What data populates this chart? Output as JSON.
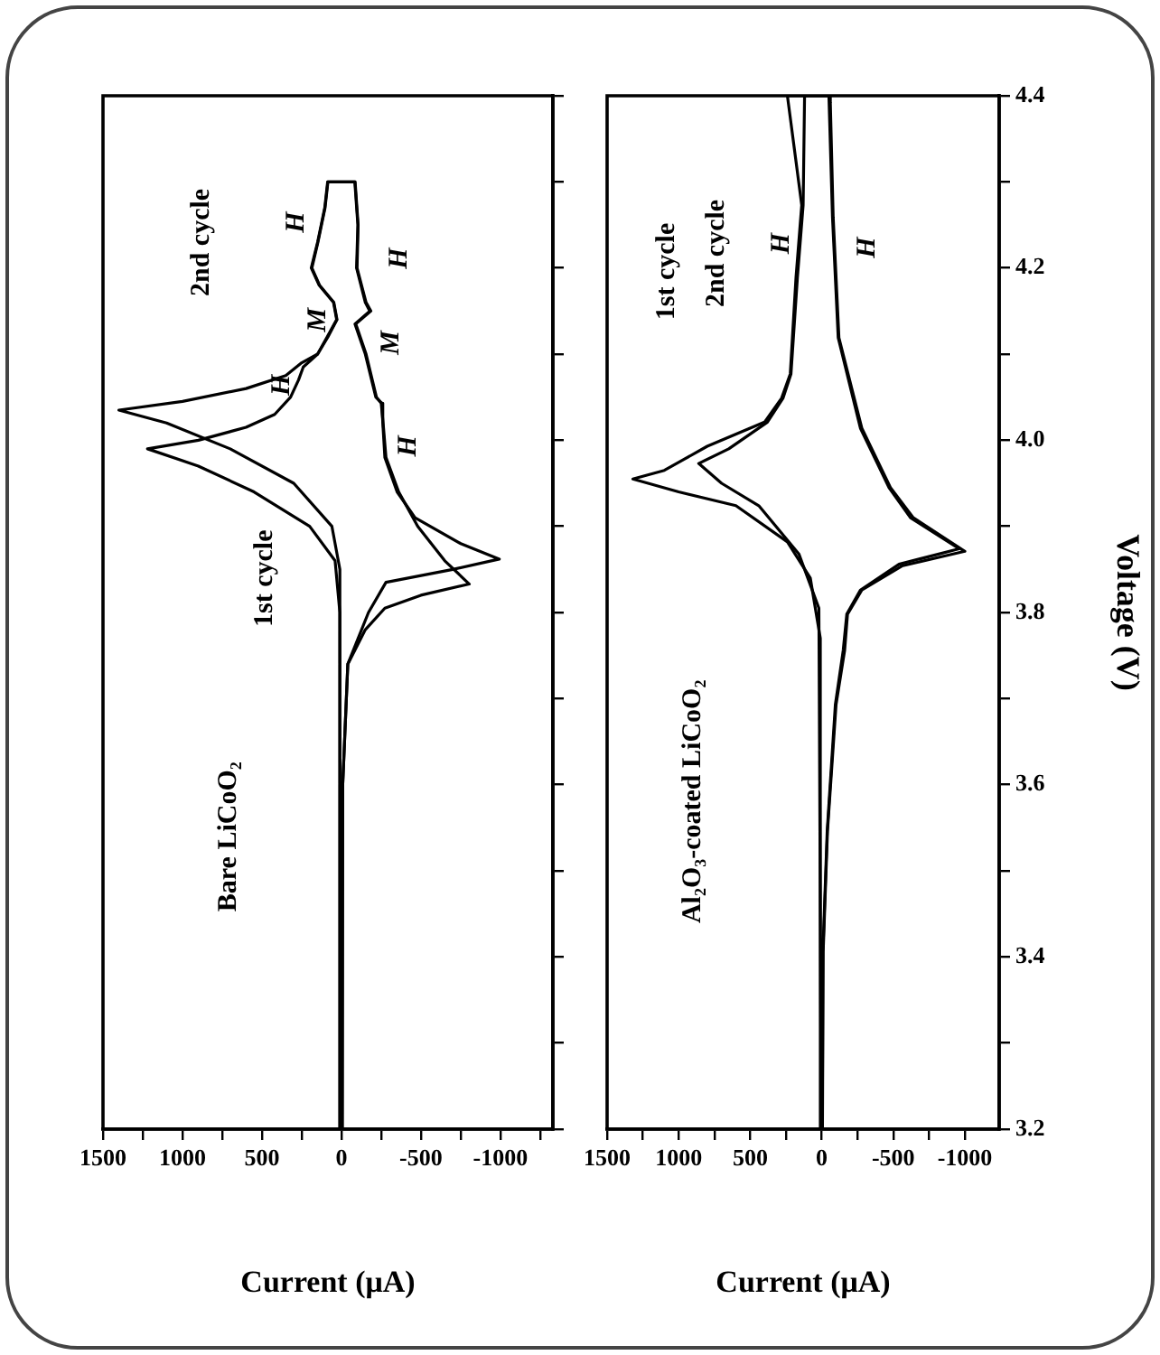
{
  "chart_data": [
    {
      "type": "line",
      "xlabel": "Current (μA)",
      "xlim": [
        1500,
        -1330
      ],
      "ylim": [
        3.2,
        4.4
      ],
      "tick_labels": "x",
      "marker": "none",
      "line_style": "solid",
      "yticks": [
        3.2,
        3.3,
        3.4,
        3.5,
        3.6,
        3.7,
        3.8,
        3.9,
        4,
        4.1,
        4.2,
        4.3,
        4.4
      ],
      "xticks": [
        1500,
        {
          "value": 1250,
          "label": null
        },
        1000,
        {
          "value": 750,
          "label": null
        },
        500,
        {
          "value": 250,
          "label": null
        },
        0,
        {
          "value": -250,
          "label": null
        },
        -500,
        {
          "value": -750,
          "label": null
        },
        -1000,
        {
          "value": -1250,
          "label": null
        }
      ],
      "series": [
        {
          "color": "#000000",
          "values": [
            3.2,
            3.8,
            3.86,
            3.9,
            3.94,
            3.97,
            3.99,
            4.0,
            4.015,
            4.03,
            4.05,
            4.07,
            4.085,
            4.1,
            4.12,
            4.14,
            4.16,
            4.18,
            4.2,
            4.23,
            4.27,
            4.3,
            4.3,
            4.25,
            4.2,
            4.16,
            4.15,
            4.135,
            4.1,
            4.05,
            4.043,
            4.02,
            3.98,
            3.94,
            3.9,
            3.86,
            3.833,
            3.82,
            3.805,
            3.78,
            3.74,
            3.6,
            3.2
          ],
          "x": [
            0,
            10,
            40,
            200,
            550,
            900,
            1220,
            900,
            600,
            420,
            320,
            270,
            240,
            150,
            85,
            28,
            48,
            138,
            186,
            148,
            103,
            85,
            -86,
            -105,
            -98,
            -155,
            -185,
            -90,
            -155,
            -220,
            -250,
            -262,
            -280,
            -360,
            -480,
            -650,
            -804,
            -500,
            -273,
            -150,
            -40,
            -8,
            -5
          ]
        },
        {
          "color": "#000000",
          "values": [
            3.2,
            3.85,
            3.9,
            3.95,
            3.99,
            4.02,
            4.035,
            4.045,
            4.06,
            4.075,
            4.09,
            4.1,
            4.12,
            4.14,
            4.16,
            4.18,
            4.2,
            4.23,
            4.27,
            4.3,
            4.3,
            4.25,
            4.2,
            4.16,
            4.15,
            4.135,
            4.1,
            4.05,
            4.043,
            4.02,
            3.98,
            3.94,
            3.91,
            3.88,
            3.862,
            3.85,
            3.835,
            3.8,
            3.74,
            3.6,
            3.2
          ],
          "x": [
            0,
            10,
            60,
            300,
            700,
            1100,
            1400,
            1000,
            600,
            350,
            250,
            150,
            90,
            30,
            50,
            140,
            190,
            150,
            105,
            87,
            -84,
            -103,
            -95,
            -150,
            -178,
            -85,
            -150,
            -216,
            -254,
            -260,
            -273,
            -350,
            -463,
            -750,
            -993,
            -700,
            -280,
            -170,
            -40,
            -8,
            -5
          ]
        }
      ],
      "annotations": [
        "Bare LiCoO₂",
        "2nd cycle",
        "1st cycle",
        "H",
        "H",
        "M",
        "H",
        "M",
        "H"
      ]
    },
    {
      "type": "line",
      "xlabel": "Current (μA)",
      "ylabel": "Voltage (V)",
      "xlim": [
        1500,
        -1240
      ],
      "ylim": [
        3.2,
        4.4
      ],
      "marker": "none",
      "line_style": "solid",
      "yticks": [
        3.2,
        {
          "value": 3.3,
          "label": null
        },
        3.4,
        {
          "value": 3.5,
          "label": null
        },
        3.6,
        {
          "value": 3.7,
          "label": null
        },
        3.8,
        {
          "value": 3.9,
          "label": null
        },
        {
          "value": 4.0,
          "label": "4.0"
        },
        {
          "value": 4.1,
          "label": null
        },
        4.2,
        {
          "value": 4.3,
          "label": null
        },
        4.4
      ],
      "xticks": [
        1500,
        {
          "value": 1250,
          "label": null
        },
        1000,
        {
          "value": 750,
          "label": null
        },
        500,
        {
          "value": 250,
          "label": null
        },
        0,
        {
          "value": -250,
          "label": null
        },
        -500,
        {
          "value": -750,
          "label": null
        },
        -1000
      ],
      "series": [
        {
          "color": "#000000",
          "values": [
            3.2,
            3.77,
            3.84,
            3.882,
            3.924,
            3.94,
            3.955,
            3.965,
            3.993,
            4.021,
            4.049,
            4.077,
            4.189,
            4.273,
            4.4,
            4.4,
            4.392,
            4.259,
            4.119,
            4.014,
            3.945,
            3.91,
            3.871,
            3.854,
            3.826,
            3.798,
            3.756,
            3.693,
            3.546,
            3.406,
            3.2
          ],
          "x": [
            5,
            10,
            80,
            240,
            600,
            1000,
            1320,
            1100,
            800,
            400,
            280,
            220,
            180,
            140,
            240,
            -60,
            -60,
            -80,
            -120,
            -280,
            -480,
            -640,
            -1000,
            -560,
            -280,
            -180,
            -160,
            -100,
            -40,
            -10,
            -5
          ]
        },
        {
          "color": "#000000",
          "values": [
            3.2,
            3.805,
            3.868,
            3.924,
            3.95,
            3.973,
            3.99,
            4.021,
            4.049,
            4.077,
            4.189,
            4.273,
            4.4,
            4.4,
            4.259,
            4.119,
            4.014,
            3.945,
            3.91,
            3.874,
            3.856,
            3.826,
            3.798,
            3.756,
            3.693,
            3.546,
            3.406,
            3.2
          ],
          "x": [
            3,
            20,
            160,
            440,
            700,
            860,
            650,
            380,
            270,
            215,
            170,
            130,
            120,
            -50,
            -75,
            -115,
            -270,
            -470,
            -620,
            -960,
            -540,
            -270,
            -175,
            -150,
            -95,
            -38,
            -8,
            -4
          ]
        }
      ],
      "annotations": [
        "Al₂O₃-coated LiCoO₂",
        "1st cycle",
        "2nd cycle",
        "H",
        "H"
      ]
    }
  ]
}
